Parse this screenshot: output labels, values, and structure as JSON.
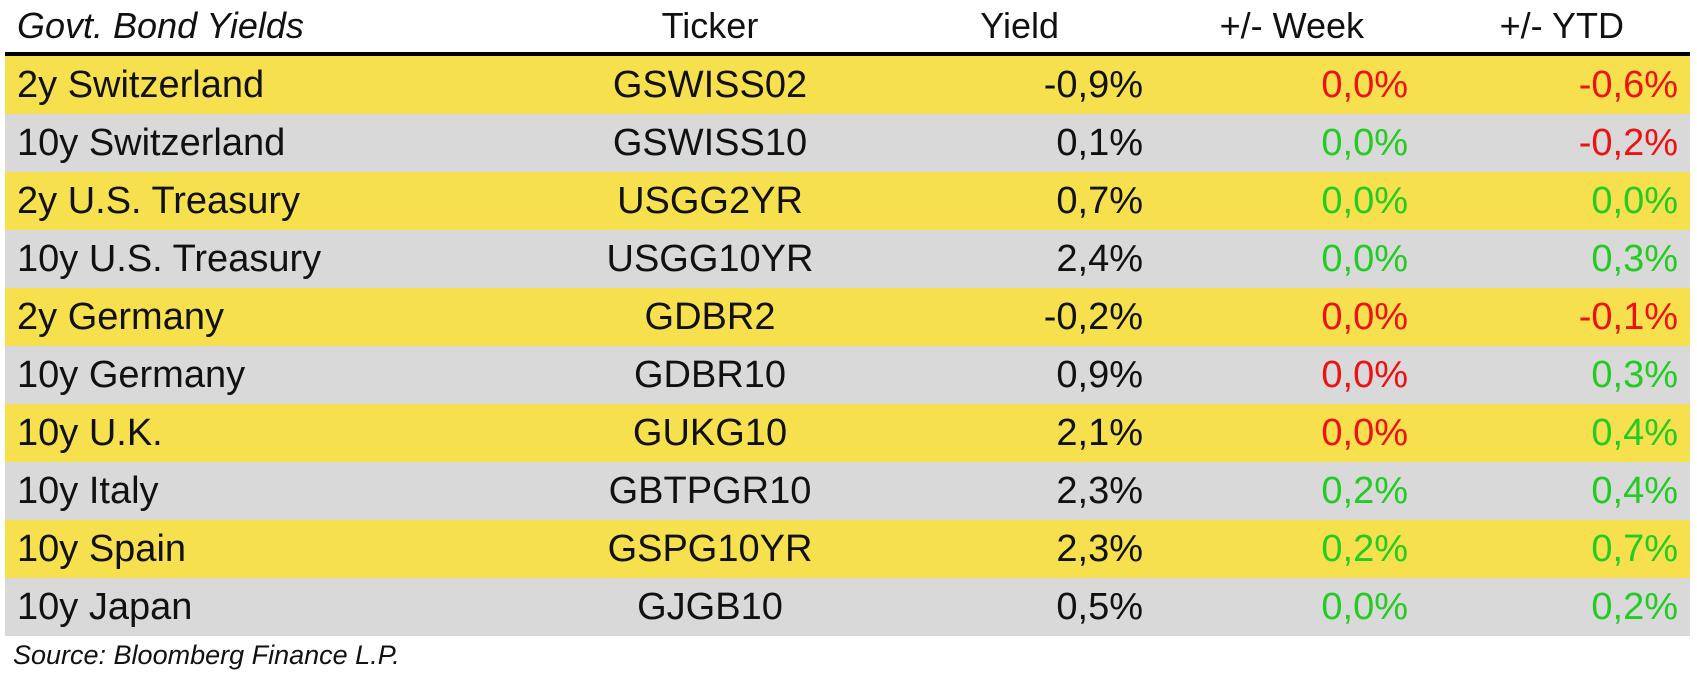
{
  "header": {
    "title": "Govt. Bond Yields",
    "ticker": "Ticker",
    "yield": "Yield",
    "week": "+/- Week",
    "ytd": "+/- YTD"
  },
  "colors": {
    "positive": "#22cc22",
    "negative": "#ee1111",
    "row_yellow": "#f7e04d",
    "row_gray": "#d9d9d9"
  },
  "rows": [
    {
      "name": "2y Switzerland",
      "ticker": "GSWISS02",
      "yield": "-0,9%",
      "week": "0,0%",
      "week_color": "negative",
      "ytd": "-0,6%",
      "ytd_color": "negative"
    },
    {
      "name": "10y Switzerland",
      "ticker": "GSWISS10",
      "yield": "0,1%",
      "week": "0,0%",
      "week_color": "positive",
      "ytd": "-0,2%",
      "ytd_color": "negative"
    },
    {
      "name": "2y U.S. Treasury",
      "ticker": "USGG2YR",
      "yield": "0,7%",
      "week": "0,0%",
      "week_color": "positive",
      "ytd": "0,0%",
      "ytd_color": "positive"
    },
    {
      "name": "10y U.S. Treasury",
      "ticker": "USGG10YR",
      "yield": "2,4%",
      "week": "0,0%",
      "week_color": "positive",
      "ytd": "0,3%",
      "ytd_color": "positive"
    },
    {
      "name": "2y Germany",
      "ticker": "GDBR2",
      "yield": "-0,2%",
      "week": "0,0%",
      "week_color": "negative",
      "ytd": "-0,1%",
      "ytd_color": "negative"
    },
    {
      "name": "10y Germany",
      "ticker": "GDBR10",
      "yield": "0,9%",
      "week": "0,0%",
      "week_color": "negative",
      "ytd": "0,3%",
      "ytd_color": "positive"
    },
    {
      "name": "10y U.K.",
      "ticker": "GUKG10",
      "yield": "2,1%",
      "week": "0,0%",
      "week_color": "negative",
      "ytd": "0,4%",
      "ytd_color": "positive"
    },
    {
      "name": "10y Italy",
      "ticker": "GBTPGR10",
      "yield": "2,3%",
      "week": "0,2%",
      "week_color": "positive",
      "ytd": "0,4%",
      "ytd_color": "positive"
    },
    {
      "name": "10y Spain",
      "ticker": "GSPG10YR",
      "yield": "2,3%",
      "week": "0,2%",
      "week_color": "positive",
      "ytd": "0,7%",
      "ytd_color": "positive"
    },
    {
      "name": "10y Japan",
      "ticker": "GJGB10",
      "yield": "0,5%",
      "week": "0,0%",
      "week_color": "positive",
      "ytd": "0,2%",
      "ytd_color": "positive"
    }
  ],
  "footer": {
    "source": "Source: Bloomberg Finance L.P."
  }
}
